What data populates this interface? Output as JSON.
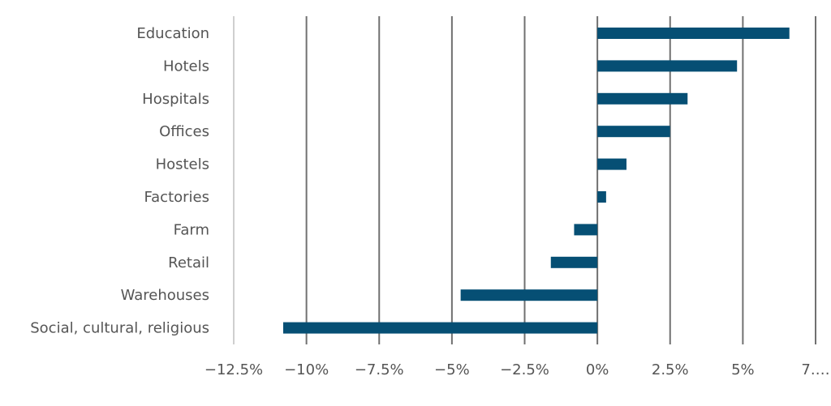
{
  "chart_data": {
    "type": "bar",
    "orientation": "horizontal",
    "categories": [
      "Education",
      "Hotels",
      "Hospitals",
      "Offices",
      "Hostels",
      "Factories",
      "Farm",
      "Retail",
      "Warehouses",
      "Social, cultural, religious"
    ],
    "values": [
      6.6,
      4.8,
      3.1,
      2.5,
      1.0,
      0.3,
      -0.8,
      -1.6,
      -4.7,
      -10.8
    ],
    "xlim": [
      -12.5,
      7.5
    ],
    "tick_values": [
      -12.5,
      -10,
      -7.5,
      -5,
      -2.5,
      0,
      2.5,
      5,
      7.5
    ],
    "tick_labels": [
      "−12.5%",
      "−10%",
      "−7.5%",
      "−5%",
      "−2.5%",
      "0%",
      "2.5%",
      "5%",
      "7.…"
    ],
    "title": "",
    "xlabel": "",
    "ylabel": "",
    "grid": true,
    "bar_color": "#064f74",
    "grid_color": "#707070"
  }
}
